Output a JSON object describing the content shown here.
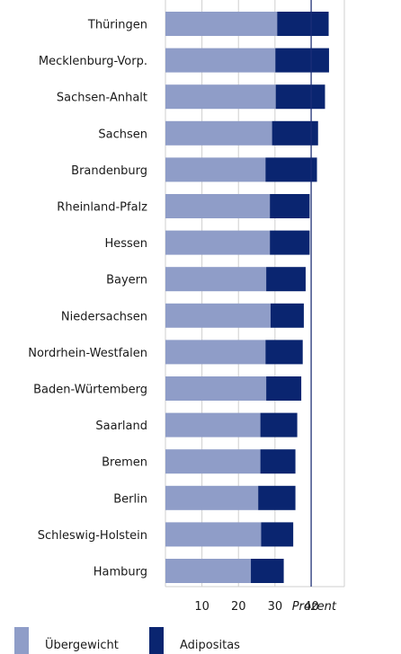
{
  "chart_data": {
    "type": "bar",
    "stacked": true,
    "orientation": "horizontal",
    "categories": [
      "Thüringen",
      "Mecklenburg-Vorp.",
      "Sachsen-Anhalt",
      "Sachsen",
      "Brandenburg",
      "Rheinland-Pfalz",
      "Hessen",
      "Bayern",
      "Niedersachsen",
      "Nordrhein-Westfalen",
      "Baden-Würtemberg",
      "Saarland",
      "Bremen",
      "Berlin",
      "Schleswig-Holstein",
      "Hamburg"
    ],
    "series": [
      {
        "name": "Übergewicht",
        "color": "#8f9dc8",
        "values": [
          30.6,
          30.1,
          30.2,
          29.2,
          27.4,
          28.6,
          28.6,
          27.6,
          28.8,
          27.4,
          27.6,
          26.0,
          26.0,
          25.4,
          26.2,
          23.4
        ]
      },
      {
        "name": "Adipositas",
        "color": "#0a2570",
        "values": [
          14.1,
          14.7,
          13.5,
          12.6,
          14.1,
          10.9,
          10.9,
          10.8,
          9.1,
          10.2,
          9.6,
          10.1,
          9.6,
          10.2,
          8.8,
          9.0
        ]
      }
    ],
    "xlim": [
      0,
      49
    ],
    "xticks": [
      "10",
      "20",
      "30",
      "40"
    ],
    "reference_line_x": 39.9,
    "unit_label": "Prozent",
    "grid": true,
    "legend": "bottom-left"
  }
}
